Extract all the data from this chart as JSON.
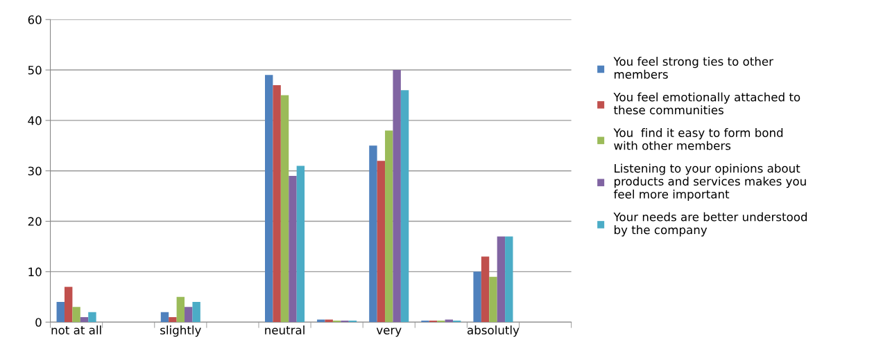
{
  "chart_data": {
    "type": "bar",
    "categories": [
      "not at all",
      null,
      "slightly",
      null,
      "neutral",
      null,
      "very",
      null,
      "absolutly",
      null
    ],
    "series": [
      {
        "name": "You feel strong ties to other\nmembers",
        "color": "#4f81bd",
        "values": [
          4,
          null,
          2,
          null,
          49,
          0.5,
          35,
          0.3,
          10,
          null
        ]
      },
      {
        "name": "You feel emotionally attached to\nthese communities",
        "color": "#c0504d",
        "values": [
          7,
          null,
          1,
          null,
          47,
          0.5,
          32,
          0.3,
          13,
          null
        ]
      },
      {
        "name": "You  find it easy to form bond\nwith other members",
        "color": "#9bbb59",
        "values": [
          3,
          null,
          5,
          null,
          45,
          0.3,
          38,
          0.3,
          9,
          null
        ]
      },
      {
        "name": "Listening to your opinions about\nproducts and services makes you\nfeel more important",
        "color": "#8064a2",
        "values": [
          1,
          null,
          3,
          null,
          29,
          0.3,
          50,
          0.5,
          17,
          null
        ]
      },
      {
        "name": "Your needs are better understood\nby the company",
        "color": "#4bacc6",
        "values": [
          2,
          null,
          4,
          null,
          31,
          0.3,
          46,
          0.3,
          17,
          null
        ]
      }
    ],
    "ylim": [
      0,
      60
    ],
    "yticks": [
      0,
      10,
      20,
      30,
      40,
      50,
      60
    ],
    "grid": "y",
    "legend": "right"
  }
}
